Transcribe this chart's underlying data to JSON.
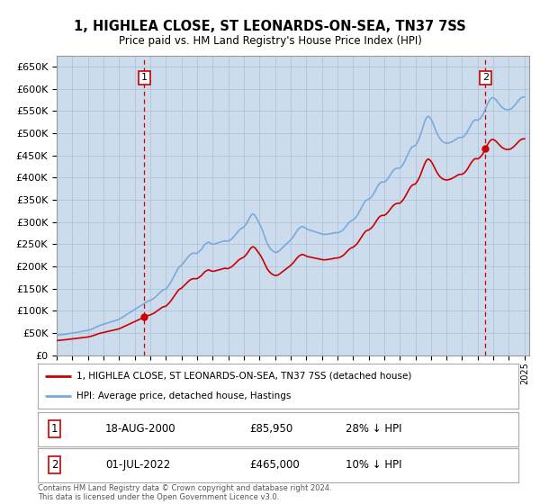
{
  "title": "1, HIGHLEA CLOSE, ST LEONARDS-ON-SEA, TN37 7SS",
  "subtitle": "Price paid vs. HM Land Registry's House Price Index (HPI)",
  "plot_bg_color": "#cddcec",
  "ylim": [
    0,
    675000
  ],
  "yticks": [
    0,
    50000,
    100000,
    150000,
    200000,
    250000,
    300000,
    350000,
    400000,
    450000,
    500000,
    550000,
    600000,
    650000
  ],
  "sale1_date": 2000.625,
  "sale1_price": 85950,
  "sale2_date": 2022.5,
  "sale2_price": 465000,
  "legend_line1": "1, HIGHLEA CLOSE, ST LEONARDS-ON-SEA, TN37 7SS (detached house)",
  "legend_line2": "HPI: Average price, detached house, Hastings",
  "footnote": "Contains HM Land Registry data © Crown copyright and database right 2024.\nThis data is licensed under the Open Government Licence v3.0.",
  "red_color": "#cc0000",
  "blue_color": "#7aaadd",
  "grid_color": "#b0c4d8",
  "hpi_x": [
    1995.0,
    1995.083,
    1995.167,
    1995.25,
    1995.333,
    1995.417,
    1995.5,
    1995.583,
    1995.667,
    1995.75,
    1995.833,
    1995.917,
    1996.0,
    1996.083,
    1996.167,
    1996.25,
    1996.333,
    1996.417,
    1996.5,
    1996.583,
    1996.667,
    1996.75,
    1996.833,
    1996.917,
    1997.0,
    1997.083,
    1997.167,
    1997.25,
    1997.333,
    1997.417,
    1997.5,
    1997.583,
    1997.667,
    1997.75,
    1997.833,
    1997.917,
    1998.0,
    1998.083,
    1998.167,
    1998.25,
    1998.333,
    1998.417,
    1998.5,
    1998.583,
    1998.667,
    1998.75,
    1998.833,
    1998.917,
    1999.0,
    1999.083,
    1999.167,
    1999.25,
    1999.333,
    1999.417,
    1999.5,
    1999.583,
    1999.667,
    1999.75,
    1999.833,
    1999.917,
    2000.0,
    2000.083,
    2000.167,
    2000.25,
    2000.333,
    2000.417,
    2000.5,
    2000.583,
    2000.667,
    2000.75,
    2000.833,
    2000.917,
    2001.0,
    2001.083,
    2001.167,
    2001.25,
    2001.333,
    2001.417,
    2001.5,
    2001.583,
    2001.667,
    2001.75,
    2001.833,
    2001.917,
    2002.0,
    2002.083,
    2002.167,
    2002.25,
    2002.333,
    2002.417,
    2002.5,
    2002.583,
    2002.667,
    2002.75,
    2002.833,
    2002.917,
    2003.0,
    2003.083,
    2003.167,
    2003.25,
    2003.333,
    2003.417,
    2003.5,
    2003.583,
    2003.667,
    2003.75,
    2003.833,
    2003.917,
    2004.0,
    2004.083,
    2004.167,
    2004.25,
    2004.333,
    2004.417,
    2004.5,
    2004.583,
    2004.667,
    2004.75,
    2004.833,
    2004.917,
    2005.0,
    2005.083,
    2005.167,
    2005.25,
    2005.333,
    2005.417,
    2005.5,
    2005.583,
    2005.667,
    2005.75,
    2005.833,
    2005.917,
    2006.0,
    2006.083,
    2006.167,
    2006.25,
    2006.333,
    2006.417,
    2006.5,
    2006.583,
    2006.667,
    2006.75,
    2006.833,
    2006.917,
    2007.0,
    2007.083,
    2007.167,
    2007.25,
    2007.333,
    2007.417,
    2007.5,
    2007.583,
    2007.667,
    2007.75,
    2007.833,
    2007.917,
    2008.0,
    2008.083,
    2008.167,
    2008.25,
    2008.333,
    2008.417,
    2008.5,
    2008.583,
    2008.667,
    2008.75,
    2008.833,
    2008.917,
    2009.0,
    2009.083,
    2009.167,
    2009.25,
    2009.333,
    2009.417,
    2009.5,
    2009.583,
    2009.667,
    2009.75,
    2009.833,
    2009.917,
    2010.0,
    2010.083,
    2010.167,
    2010.25,
    2010.333,
    2010.417,
    2010.5,
    2010.583,
    2010.667,
    2010.75,
    2010.833,
    2010.917,
    2011.0,
    2011.083,
    2011.167,
    2011.25,
    2011.333,
    2011.417,
    2011.5,
    2011.583,
    2011.667,
    2011.75,
    2011.833,
    2011.917,
    2012.0,
    2012.083,
    2012.167,
    2012.25,
    2012.333,
    2012.417,
    2012.5,
    2012.583,
    2012.667,
    2012.75,
    2012.833,
    2012.917,
    2013.0,
    2013.083,
    2013.167,
    2013.25,
    2013.333,
    2013.417,
    2013.5,
    2013.583,
    2013.667,
    2013.75,
    2013.833,
    2013.917,
    2014.0,
    2014.083,
    2014.167,
    2014.25,
    2014.333,
    2014.417,
    2014.5,
    2014.583,
    2014.667,
    2014.75,
    2014.833,
    2014.917,
    2015.0,
    2015.083,
    2015.167,
    2015.25,
    2015.333,
    2015.417,
    2015.5,
    2015.583,
    2015.667,
    2015.75,
    2015.833,
    2015.917,
    2016.0,
    2016.083,
    2016.167,
    2016.25,
    2016.333,
    2016.417,
    2016.5,
    2016.583,
    2016.667,
    2016.75,
    2016.833,
    2016.917,
    2017.0,
    2017.083,
    2017.167,
    2017.25,
    2017.333,
    2017.417,
    2017.5,
    2017.583,
    2017.667,
    2017.75,
    2017.833,
    2017.917,
    2018.0,
    2018.083,
    2018.167,
    2018.25,
    2018.333,
    2018.417,
    2018.5,
    2018.583,
    2018.667,
    2018.75,
    2018.833,
    2018.917,
    2019.0,
    2019.083,
    2019.167,
    2019.25,
    2019.333,
    2019.417,
    2019.5,
    2019.583,
    2019.667,
    2019.75,
    2019.833,
    2019.917,
    2020.0,
    2020.083,
    2020.167,
    2020.25,
    2020.333,
    2020.417,
    2020.5,
    2020.583,
    2020.667,
    2020.75,
    2020.833,
    2020.917,
    2021.0,
    2021.083,
    2021.167,
    2021.25,
    2021.333,
    2021.417,
    2021.5,
    2021.583,
    2021.667,
    2021.75,
    2021.833,
    2021.917,
    2022.0,
    2022.083,
    2022.167,
    2022.25,
    2022.333,
    2022.417,
    2022.5,
    2022.583,
    2022.667,
    2022.75,
    2022.833,
    2022.917,
    2023.0,
    2023.083,
    2023.167,
    2023.25,
    2023.333,
    2023.417,
    2023.5,
    2023.583,
    2023.667,
    2023.75,
    2023.833,
    2023.917,
    2024.0,
    2024.083,
    2024.167,
    2024.25,
    2024.333,
    2024.417,
    2024.5,
    2024.583,
    2024.667,
    2024.75,
    2024.833,
    2024.917,
    2025.0
  ],
  "hpi_idx": [
    49,
    49.5,
    50,
    50.3,
    50.8,
    51,
    51.5,
    52,
    52.5,
    53,
    53.5,
    54,
    54.5,
    55,
    55.5,
    56,
    56.5,
    57,
    57.8,
    58.5,
    59,
    59.5,
    60,
    60.5,
    61,
    62,
    63,
    64,
    65.5,
    67,
    68.5,
    70,
    71.5,
    73,
    74,
    75,
    76,
    77,
    78,
    79,
    80,
    81,
    82,
    83,
    84,
    85,
    86,
    87,
    88,
    90,
    92,
    94,
    96,
    98,
    100,
    102,
    104,
    106,
    108,
    110,
    112,
    114,
    116,
    118,
    120,
    122,
    124,
    126,
    128,
    130,
    132,
    133,
    134,
    136,
    138,
    140,
    143,
    146,
    149,
    152,
    155,
    158,
    160,
    161,
    162,
    166,
    170,
    175,
    180,
    186,
    192,
    198,
    204,
    210,
    215,
    218,
    220,
    224,
    228,
    232,
    236,
    240,
    244,
    247,
    249,
    250,
    250,
    249,
    250,
    252,
    255,
    258,
    262,
    267,
    271,
    274,
    276,
    277,
    275,
    273,
    272,
    272,
    273,
    274,
    275,
    276,
    277,
    278,
    279,
    280,
    280,
    279,
    279,
    281,
    283,
    286,
    289,
    293,
    297,
    301,
    305,
    308,
    310,
    312,
    314,
    318,
    322,
    328,
    334,
    340,
    344,
    346,
    344,
    340,
    334,
    328,
    322,
    316,
    308,
    300,
    291,
    282,
    274,
    268,
    263,
    259,
    256,
    254,
    252,
    252,
    253,
    255,
    258,
    261,
    264,
    267,
    270,
    273,
    276,
    279,
    282,
    286,
    290,
    295,
    300,
    305,
    309,
    312,
    314,
    315,
    314,
    312,
    310,
    308,
    307,
    306,
    305,
    304,
    303,
    302,
    301,
    300,
    299,
    298,
    297,
    296,
    296,
    296,
    296,
    297,
    297,
    298,
    298,
    299,
    300,
    300,
    300,
    301,
    302,
    304,
    306,
    309,
    313,
    317,
    321,
    325,
    328,
    330,
    331,
    334,
    337,
    341,
    346,
    352,
    358,
    364,
    370,
    375,
    379,
    381,
    382,
    384,
    387,
    391,
    396,
    402,
    408,
    414,
    419,
    422,
    424,
    424,
    424,
    426,
    429,
    433,
    438,
    443,
    448,
    452,
    455,
    457,
    458,
    458,
    458,
    461,
    465,
    470,
    476,
    483,
    490,
    497,
    503,
    508,
    511,
    512,
    513,
    518,
    524,
    531,
    540,
    550,
    560,
    570,
    578,
    583,
    585,
    582,
    578,
    572,
    564,
    556,
    548,
    541,
    535,
    530,
    526,
    523,
    521,
    520,
    519,
    519,
    520,
    521,
    522,
    524,
    526,
    528,
    530,
    532,
    533,
    533,
    533,
    535,
    538,
    542,
    547,
    553,
    559,
    565,
    570,
    574,
    576,
    576,
    575,
    577,
    580,
    584,
    589,
    596,
    603,
    611,
    618,
    624,
    628,
    630,
    630,
    628,
    625,
    621,
    617,
    613,
    609,
    606,
    604,
    602,
    601,
    601,
    601,
    602,
    604,
    607,
    610,
    614,
    618,
    622,
    626,
    629,
    631,
    632,
    632
  ]
}
